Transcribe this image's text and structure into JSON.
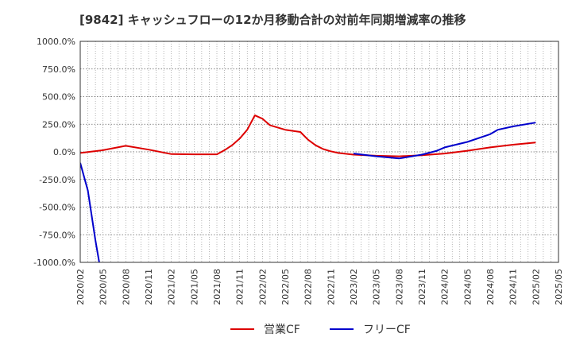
{
  "chart_data": {
    "type": "line",
    "title": "[9842]  キャッシュフローの12か月移動合計の対前年同期増減率の推移",
    "xlabel": "",
    "ylabel": "",
    "ylim": [
      -1000,
      1000
    ],
    "yticks": [
      1000,
      750,
      500,
      250,
      0,
      -250,
      -500,
      -750,
      -1000
    ],
    "ytick_labels": [
      "1000.0%",
      "750.0%",
      "500.0%",
      "250.0%",
      "0.0%",
      "-250.0%",
      "-500.0%",
      "-750.0%",
      "-1000.0%"
    ],
    "xticks": [
      "2020/02",
      "2020/05",
      "2020/08",
      "2020/11",
      "2021/02",
      "2021/05",
      "2021/08",
      "2021/11",
      "2022/02",
      "2022/05",
      "2022/08",
      "2022/11",
      "2023/02",
      "2023/05",
      "2023/08",
      "2023/11",
      "2024/02",
      "2024/05",
      "2024/08",
      "2024/11",
      "2025/02",
      "2025/05"
    ],
    "grid": true,
    "legend_position": "bottom",
    "series": [
      {
        "name": "営業CF",
        "color": "#dd0000",
        "x": [
          "2020/02",
          "2020/05",
          "2020/08",
          "2020/11",
          "2021/02",
          "2021/05",
          "2021/08",
          "2021/09",
          "2021/10",
          "2021/11",
          "2021/12",
          "2022/01",
          "2022/02",
          "2022/03",
          "2022/05",
          "2022/07",
          "2022/08",
          "2022/09",
          "2022/10",
          "2022/11",
          "2022/12",
          "2023/02",
          "2023/05",
          "2023/08",
          "2023/11",
          "2024/02",
          "2024/05",
          "2024/08",
          "2024/11",
          "2025/02"
        ],
        "values": [
          -10,
          15,
          55,
          20,
          -20,
          -22,
          -22,
          15,
          60,
          120,
          200,
          330,
          300,
          240,
          200,
          180,
          110,
          60,
          25,
          5,
          -10,
          -25,
          -35,
          -40,
          -30,
          -15,
          10,
          40,
          65,
          85
        ]
      },
      {
        "name": "フリーCF",
        "color": "#0000cc",
        "x": [
          "2020/02",
          "2020/03",
          "2020/04",
          "2020/04.5"
        ],
        "values": [
          -100,
          -350,
          -800,
          -1000
        ],
        "note": "line exits chart bottom near 2020/04"
      },
      {
        "name": "フリーCF",
        "color": "#0000cc",
        "x": [
          "2023/02",
          "2023/05",
          "2023/08",
          "2023/11",
          "2024/01",
          "2024/02",
          "2024/05",
          "2024/08",
          "2024/09",
          "2024/11",
          "2025/02"
        ],
        "values": [
          -15,
          -40,
          -60,
          -25,
          10,
          40,
          90,
          160,
          200,
          230,
          265
        ]
      }
    ]
  },
  "legend": {
    "items": [
      {
        "label": "営業CF",
        "color": "#dd0000"
      },
      {
        "label": "フリーCF",
        "color": "#0000cc"
      }
    ]
  }
}
